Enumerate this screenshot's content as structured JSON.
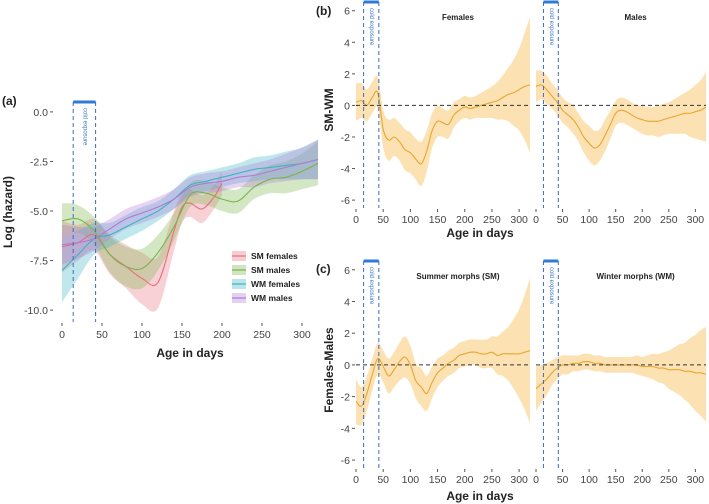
{
  "chart_data": [
    {
      "panel_label": "(a)",
      "type": "line",
      "xlabel": "Age in days",
      "ylabel": "Log (hazard)",
      "xlim": [
        -10,
        330
      ],
      "ylim": [
        -10.6,
        0.6
      ],
      "xticks": [
        0,
        50,
        100,
        150,
        200,
        250,
        300
      ],
      "yticks": [
        0.0,
        -2.5,
        -5.0,
        -7.5,
        -10.0
      ],
      "ytick_labels": [
        "0.0",
        "-2.5",
        "-5.0",
        "-7.5",
        "-10.0"
      ],
      "cold_exposure": {
        "label": "cold exposure",
        "start": 14,
        "end": 42
      },
      "grid": false,
      "legend_position": "right",
      "series": [
        {
          "name": "SM females",
          "color": "#e8707e",
          "x": [
            0,
            20,
            40,
            60,
            80,
            100,
            120,
            140,
            150,
            160,
            175,
            190,
            200
          ],
          "y": [
            -6.8,
            -6.6,
            -6.2,
            -7.2,
            -7.8,
            -8.4,
            -8.6,
            -6.0,
            -4.8,
            -4.6,
            -4.9,
            -4.3,
            -3.6
          ],
          "ci": [
            1.3,
            0.9,
            0.8,
            1.0,
            1.1,
            1.3,
            1.3,
            1.0,
            0.8,
            0.7,
            0.7,
            0.6,
            0.6
          ]
        },
        {
          "name": "SM males",
          "color": "#7ab34a",
          "x": [
            0,
            20,
            40,
            60,
            80,
            100,
            120,
            140,
            160,
            180,
            200,
            220,
            240,
            260,
            280,
            300,
            320
          ],
          "y": [
            -5.5,
            -5.4,
            -6.0,
            -7.2,
            -7.8,
            -7.9,
            -7.1,
            -5.8,
            -4.2,
            -4.1,
            -4.4,
            -4.5,
            -3.8,
            -3.4,
            -3.3,
            -3.0,
            -2.6
          ],
          "ci": [
            0.9,
            0.7,
            0.7,
            0.9,
            1.0,
            1.0,
            0.9,
            0.7,
            0.6,
            0.6,
            0.6,
            0.6,
            0.6,
            0.7,
            0.8,
            0.9,
            1.1
          ]
        },
        {
          "name": "WM females",
          "color": "#3bb5c4",
          "x": [
            0,
            20,
            40,
            60,
            80,
            100,
            120,
            140,
            160,
            180,
            200,
            220,
            240,
            260,
            280,
            300,
            320
          ],
          "y": [
            -8.0,
            -7.2,
            -6.4,
            -6.2,
            -5.8,
            -5.4,
            -5.0,
            -4.4,
            -3.7,
            -3.5,
            -3.3,
            -3.1,
            -2.9,
            -2.8,
            -2.7,
            -2.6,
            -2.4
          ],
          "ci": [
            1.6,
            1.2,
            0.8,
            0.6,
            0.6,
            0.6,
            0.5,
            0.5,
            0.5,
            0.5,
            0.5,
            0.5,
            0.6,
            0.6,
            0.7,
            0.8,
            1.0
          ]
        },
        {
          "name": "WM males",
          "color": "#b07ad6",
          "x": [
            0,
            20,
            40,
            60,
            80,
            100,
            120,
            140,
            160,
            180,
            200,
            220,
            240,
            260,
            280,
            300,
            320
          ],
          "y": [
            -6.7,
            -6.6,
            -6.4,
            -5.9,
            -5.4,
            -5.1,
            -4.8,
            -4.4,
            -3.8,
            -3.6,
            -3.5,
            -3.3,
            -3.2,
            -3.0,
            -2.8,
            -2.6,
            -2.4
          ],
          "ci": [
            1.0,
            0.8,
            0.6,
            0.5,
            0.5,
            0.5,
            0.5,
            0.5,
            0.5,
            0.5,
            0.5,
            0.5,
            0.6,
            0.6,
            0.7,
            0.8,
            1.0
          ]
        }
      ]
    },
    {
      "panel_label": "(b)",
      "type": "line",
      "ylabel": "SM-WM",
      "xlabel": "Age in days",
      "ylim": [
        -6.5,
        6.3
      ],
      "yticks": [
        6,
        4,
        2,
        0,
        -2,
        -4,
        -6
      ],
      "xticks": [
        0,
        50,
        100,
        150,
        200,
        250,
        300
      ],
      "line_color": "#e8a530",
      "band_color": "#fbd89a",
      "reference_line": 0,
      "facets": [
        {
          "title": "Females",
          "xlim": [
            0,
            320
          ],
          "x": [
            0,
            10,
            20,
            30,
            40,
            50,
            60,
            70,
            80,
            90,
            100,
            110,
            120,
            130,
            140,
            150,
            160,
            170,
            180,
            190,
            200,
            210,
            220,
            230,
            240,
            250,
            260,
            270,
            280,
            290,
            300,
            310,
            320
          ],
          "y": [
            0.2,
            0.3,
            0.0,
            0.5,
            0.8,
            -1.5,
            -2.2,
            -2.0,
            -2.3,
            -2.8,
            -3.0,
            -3.4,
            -3.7,
            -2.9,
            -1.6,
            -1.0,
            -1.1,
            -1.2,
            -0.6,
            -0.3,
            -0.1,
            -0.2,
            -0.1,
            0.0,
            0.1,
            0.2,
            0.3,
            0.5,
            0.7,
            0.8,
            1.0,
            1.2,
            1.3
          ],
          "ci": [
            1.2,
            1.1,
            1.0,
            1.0,
            1.0,
            1.2,
            1.3,
            1.2,
            1.2,
            1.3,
            1.3,
            1.3,
            1.4,
            1.3,
            1.1,
            1.0,
            0.9,
            0.9,
            0.8,
            0.7,
            0.7,
            0.7,
            0.7,
            0.8,
            0.9,
            1.0,
            1.2,
            1.4,
            1.7,
            2.1,
            2.6,
            3.4,
            4.3
          ]
        },
        {
          "title": "Males",
          "xlim": [
            0,
            320
          ],
          "x": [
            0,
            10,
            20,
            30,
            40,
            50,
            60,
            70,
            80,
            90,
            100,
            110,
            120,
            130,
            140,
            150,
            160,
            170,
            180,
            190,
            200,
            210,
            220,
            230,
            240,
            250,
            260,
            270,
            280,
            290,
            300,
            310,
            320
          ],
          "y": [
            1.2,
            1.3,
            1.0,
            0.6,
            0.2,
            -0.3,
            -0.6,
            -0.9,
            -1.4,
            -2.0,
            -2.4,
            -2.7,
            -2.5,
            -1.9,
            -1.2,
            -0.5,
            -0.3,
            -0.4,
            -0.6,
            -0.8,
            -0.9,
            -1.0,
            -1.0,
            -1.0,
            -0.9,
            -0.8,
            -0.7,
            -0.6,
            -0.5,
            -0.5,
            -0.4,
            -0.3,
            -0.1
          ],
          "ci": [
            1.0,
            0.9,
            0.9,
            0.8,
            0.8,
            0.8,
            0.8,
            0.9,
            0.9,
            1.0,
            1.1,
            1.1,
            1.0,
            1.0,
            0.9,
            0.8,
            0.8,
            0.8,
            0.8,
            0.8,
            0.9,
            0.9,
            0.9,
            1.0,
            1.0,
            1.0,
            1.1,
            1.2,
            1.3,
            1.5,
            1.7,
            1.9,
            2.2
          ]
        }
      ],
      "cold_exposure": {
        "label": "cold exposure",
        "start": 14,
        "end": 42
      }
    },
    {
      "panel_label": "(c)",
      "type": "line",
      "ylabel": "Females-Males",
      "xlabel": "Age in days",
      "ylim": [
        -6.5,
        6.3
      ],
      "yticks": [
        6,
        4,
        2,
        0,
        -2,
        -4,
        -6
      ],
      "xticks": [
        0,
        50,
        100,
        150,
        200,
        250,
        300
      ],
      "line_color": "#e8a530",
      "band_color": "#fbd89a",
      "reference_line": 0,
      "facets": [
        {
          "title": "Summer morphs (SM)",
          "xlim": [
            0,
            320
          ],
          "x": [
            0,
            10,
            20,
            30,
            40,
            50,
            60,
            70,
            80,
            90,
            100,
            110,
            120,
            130,
            140,
            150,
            160,
            170,
            180,
            190,
            200,
            210,
            220,
            230,
            240,
            250,
            260,
            270,
            280,
            290,
            300,
            310,
            320
          ],
          "y": [
            -2.3,
            -2.6,
            -1.8,
            -0.6,
            0.4,
            -0.1,
            -0.7,
            -0.3,
            0.2,
            0.5,
            0.0,
            -1.0,
            -1.4,
            -1.8,
            -1.1,
            -0.5,
            -0.2,
            0.1,
            0.3,
            0.6,
            0.7,
            0.8,
            0.8,
            0.7,
            0.7,
            0.8,
            0.6,
            0.7,
            0.7,
            0.7,
            0.7,
            0.8,
            0.9
          ],
          "ci": [
            1.4,
            1.2,
            1.1,
            1.0,
            1.0,
            1.0,
            1.1,
            1.1,
            1.2,
            1.3,
            1.2,
            1.1,
            1.2,
            1.1,
            1.0,
            0.9,
            0.8,
            0.8,
            0.8,
            0.8,
            0.8,
            0.8,
            0.8,
            0.9,
            0.9,
            1.0,
            1.2,
            1.4,
            1.7,
            2.2,
            2.8,
            3.6,
            4.6
          ]
        },
        {
          "title": "Winter morphs (WM)",
          "xlim": [
            0,
            320
          ],
          "x": [
            0,
            10,
            20,
            30,
            40,
            50,
            60,
            70,
            80,
            90,
            100,
            110,
            120,
            130,
            140,
            150,
            160,
            170,
            180,
            190,
            200,
            210,
            220,
            230,
            240,
            250,
            260,
            270,
            280,
            290,
            300,
            310,
            320
          ],
          "y": [
            -1.5,
            -1.2,
            -0.9,
            -0.5,
            -0.2,
            0.0,
            0.0,
            0.1,
            0.1,
            0.2,
            0.2,
            0.1,
            0.1,
            0.0,
            0.0,
            0.0,
            0.0,
            0.0,
            0.0,
            0.0,
            -0.1,
            -0.1,
            -0.1,
            -0.2,
            -0.2,
            -0.3,
            -0.3,
            -0.3,
            -0.4,
            -0.4,
            -0.5,
            -0.5,
            -0.6
          ],
          "ci": [
            1.4,
            1.2,
            1.0,
            0.8,
            0.7,
            0.6,
            0.6,
            0.5,
            0.5,
            0.5,
            0.5,
            0.5,
            0.5,
            0.5,
            0.5,
            0.5,
            0.5,
            0.5,
            0.5,
            0.6,
            0.6,
            0.7,
            0.8,
            0.9,
            1.0,
            1.2,
            1.4,
            1.6,
            1.8,
            2.1,
            2.4,
            2.7,
            3.0
          ]
        }
      ],
      "cold_exposure": {
        "label": "cold exposure",
        "start": 14,
        "end": 42
      }
    }
  ]
}
